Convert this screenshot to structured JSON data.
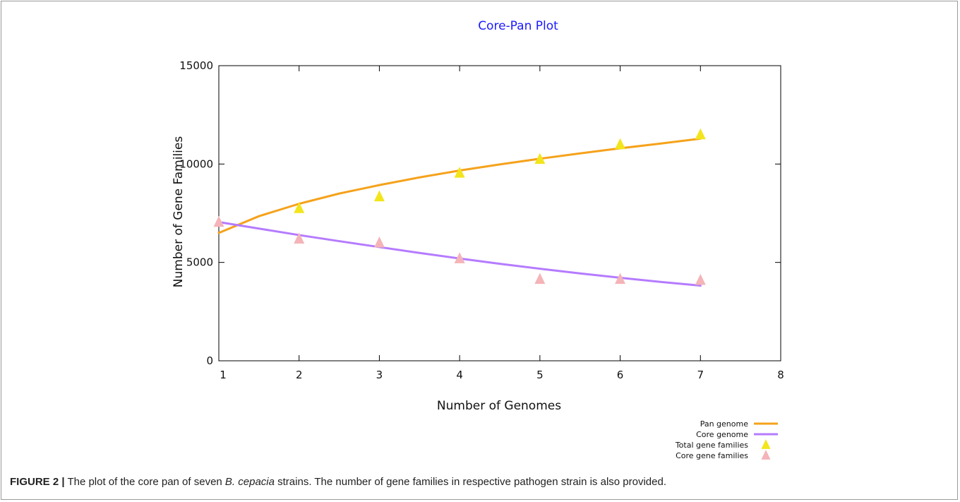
{
  "chart_data": {
    "type": "line",
    "title": "Core-Pan Plot",
    "xlabel": "Number of Genomes",
    "ylabel": "Number of Gene Families",
    "xlim": [
      1,
      8
    ],
    "ylim": [
      0,
      15000
    ],
    "xticks": [
      "1",
      "2",
      "3",
      "4",
      "5",
      "6",
      "7",
      "8"
    ],
    "yticks": [
      "0",
      "5000",
      "10000",
      "15000"
    ],
    "grid": false,
    "legend_position": "bottom-right",
    "series": [
      {
        "name": "Pan genome",
        "kind": "line",
        "color": "#f5a21b",
        "x": [
          1,
          1.5,
          2,
          2.5,
          3,
          3.5,
          4,
          4.5,
          5,
          5.5,
          6,
          6.5,
          7
        ],
        "y": [
          6500,
          7350,
          7980,
          8500,
          8930,
          9320,
          9670,
          9980,
          10270,
          10540,
          10800,
          11040,
          11290
        ]
      },
      {
        "name": "Core genome",
        "kind": "line",
        "color": "#b57bff",
        "x": [
          1,
          1.5,
          2,
          2.5,
          3,
          3.5,
          4,
          4.5,
          5,
          5.5,
          6,
          6.5,
          7
        ],
        "y": [
          7050,
          6720,
          6390,
          6080,
          5780,
          5480,
          5200,
          4930,
          4680,
          4440,
          4220,
          4010,
          3820
        ]
      },
      {
        "name": "Total gene families",
        "kind": "scatter",
        "marker": "triangle",
        "color": "#f2e51b",
        "x": [
          2,
          3,
          4,
          5,
          6,
          7
        ],
        "y": [
          7750,
          8350,
          9550,
          10250,
          11000,
          11500
        ]
      },
      {
        "name": "Core gene families",
        "kind": "scatter",
        "marker": "triangle",
        "color": "#f4b4b8",
        "x": [
          1,
          2,
          3,
          4,
          5,
          6,
          7
        ],
        "y": [
          7050,
          6200,
          6000,
          5200,
          4150,
          4150,
          4100
        ]
      }
    ]
  },
  "caption": {
    "label": "FIGURE 2 |",
    "text_before": " The plot of the core pan of seven ",
    "species": "B. cepacia",
    "text_after": " strains. The number of gene families in respective pathogen strain is also provided."
  }
}
